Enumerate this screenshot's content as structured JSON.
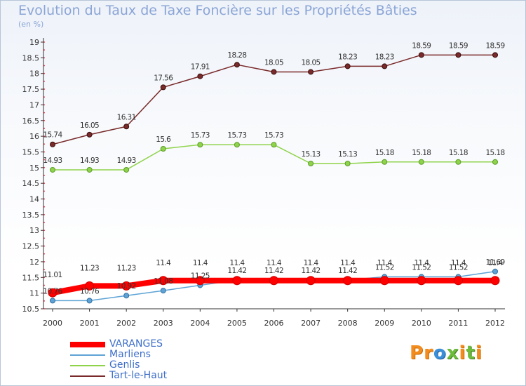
{
  "title": "Evolution du Taux de Taxe Foncière sur les Propriétés Bâties",
  "unit": "(en %)",
  "logo": {
    "text": "Proxiti"
  },
  "chart_data": {
    "type": "line",
    "title": "Evolution du Taux de Taxe Foncière sur les Propriétés Bâties",
    "ylabel": "(en %)",
    "xlabel": "",
    "x": [
      2000,
      2001,
      2002,
      2003,
      2004,
      2005,
      2006,
      2007,
      2008,
      2009,
      2010,
      2011,
      2012
    ],
    "ylim": [
      10.5,
      19
    ],
    "yticks": [
      10.5,
      11,
      11.5,
      12,
      12.5,
      13,
      13.5,
      14,
      14.5,
      15,
      15.5,
      16,
      16.5,
      17,
      17.5,
      18,
      18.5,
      19
    ],
    "grid": false,
    "legend_position": "bottom-left",
    "series": [
      {
        "name": "VARANGES",
        "color": "#ff0000",
        "values": [
          11.01,
          11.23,
          11.23,
          11.4,
          11.4,
          11.4,
          11.4,
          11.4,
          11.4,
          11.4,
          11.4,
          11.4,
          11.4
        ],
        "labels": [
          "11.01",
          "11.23",
          "11.23",
          "11.4",
          "11.4",
          "11.4",
          "11.4",
          "11.4",
          "11.4",
          "11.4",
          "11.4",
          "11.4",
          "11.4"
        ]
      },
      {
        "name": "Marliens",
        "color": "#5fa3d6",
        "values": [
          10.76,
          10.76,
          10.92,
          11.08,
          11.25,
          11.42,
          11.42,
          11.42,
          11.42,
          11.52,
          11.52,
          11.52,
          11.69
        ],
        "labels": [
          "10.76",
          "10.76",
          "10.92",
          "11.08",
          "11.25",
          "11.42",
          "11.42",
          "11.42",
          "11.42",
          "11.52",
          "11.52",
          "11.52",
          "11.69"
        ]
      },
      {
        "name": "Genlis",
        "color": "#8fd34a",
        "values": [
          14.93,
          14.93,
          14.93,
          15.6,
          15.73,
          15.73,
          15.73,
          15.13,
          15.13,
          15.18,
          15.18,
          15.18,
          15.18
        ],
        "labels": [
          "14.93",
          "14.93",
          "14.93",
          "15.6",
          "15.73",
          "15.73",
          "15.73",
          "15.13",
          "15.13",
          "15.18",
          "15.18",
          "15.18",
          "15.18"
        ]
      },
      {
        "name": "Tart-le-Haut",
        "color": "#7a2a2a",
        "values": [
          15.74,
          16.05,
          16.31,
          17.56,
          17.91,
          18.28,
          18.05,
          18.05,
          18.23,
          18.23,
          18.59,
          18.59,
          18.59
        ],
        "labels": [
          "15.74",
          "16.05",
          "16.31",
          "17.56",
          "17.91",
          "18.28",
          "18.05",
          "18.05",
          "18.23",
          "18.23",
          "18.59",
          "18.59",
          "18.59"
        ]
      }
    ]
  }
}
